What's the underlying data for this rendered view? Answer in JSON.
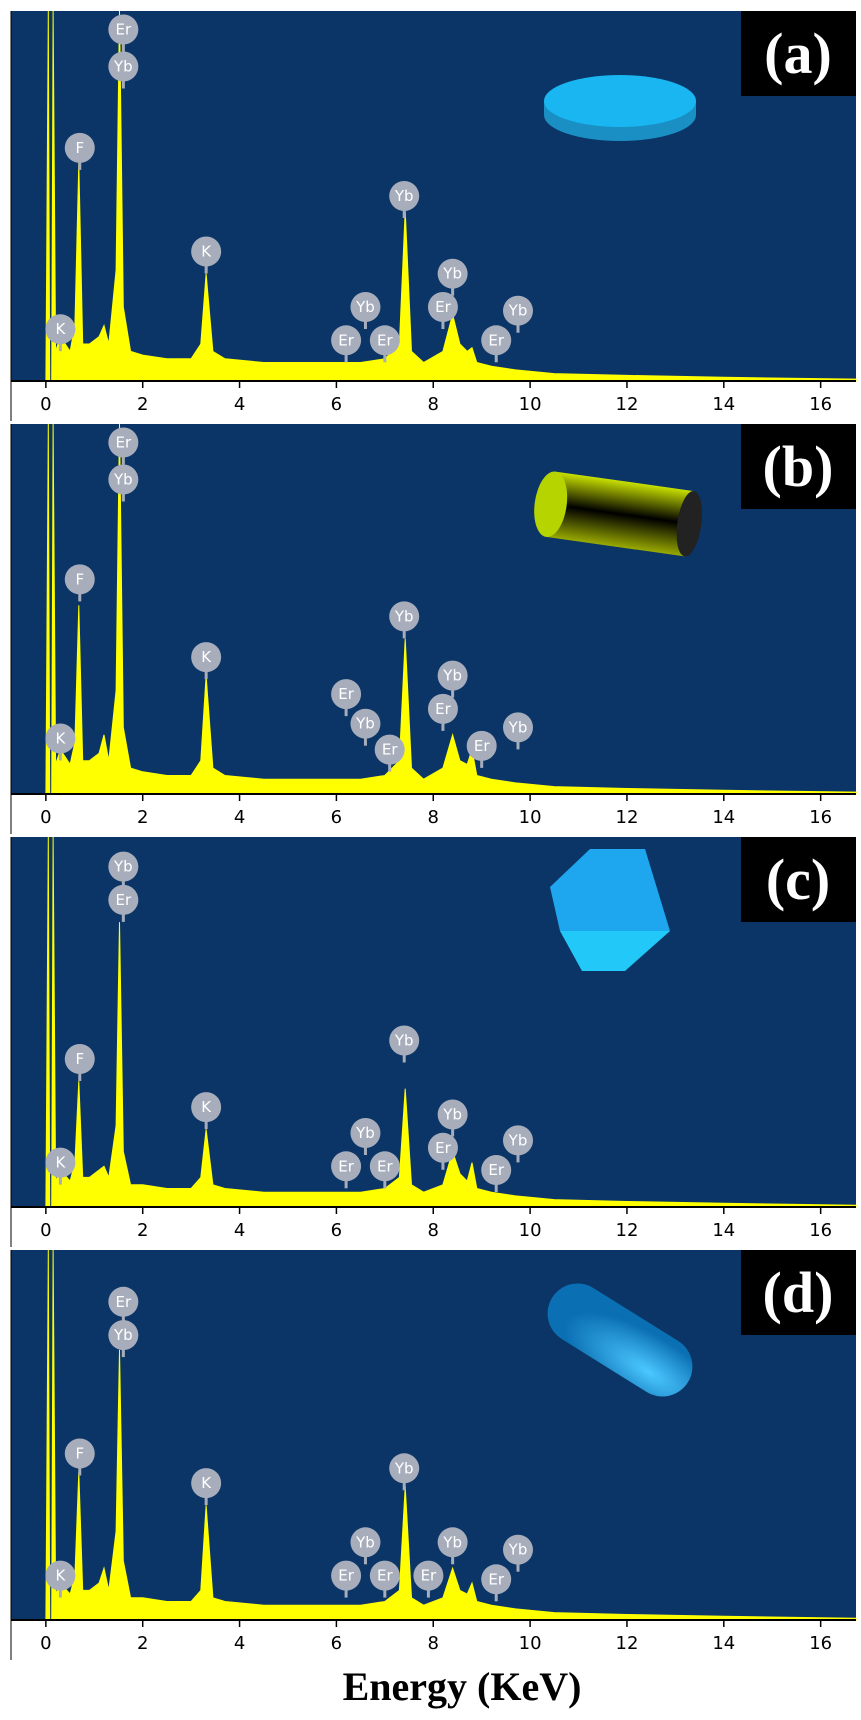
{
  "chart_data": [
    {
      "type": "area",
      "panel_label": "(a)",
      "color": "#ffff00",
      "background": "#0b3566",
      "xlim": [
        -0.72,
        16.73
      ],
      "ylim": [
        0,
        100
      ],
      "xticks": [
        0,
        2,
        4,
        6,
        8,
        10,
        12,
        14,
        16
      ],
      "x": [
        -0.72,
        0,
        0.05,
        0.08,
        0.12,
        0.15,
        0.2,
        0.3,
        0.5,
        0.6,
        0.68,
        0.76,
        0.9,
        1.1,
        1.2,
        1.3,
        1.45,
        1.52,
        1.6,
        1.75,
        2.0,
        2.5,
        3.0,
        3.2,
        3.31,
        3.45,
        3.7,
        4.5,
        5.5,
        6.5,
        7.0,
        7.3,
        7.42,
        7.55,
        7.8,
        8.2,
        8.4,
        8.55,
        8.7,
        8.8,
        8.9,
        9.2,
        9.7,
        10.5,
        12,
        14,
        16.73
      ],
      "values": [
        0,
        0,
        100,
        0,
        0,
        100,
        8,
        12,
        8,
        15,
        59,
        10,
        10,
        12,
        15,
        10,
        30,
        100,
        20,
        8,
        7,
        6,
        6,
        10,
        29,
        8,
        6,
        5,
        5,
        5,
        6,
        10,
        46,
        8,
        5,
        8,
        18,
        10,
        8,
        9,
        5,
        4,
        3,
        2,
        1.5,
        1,
        0.5
      ],
      "annotations": [
        {
          "label": "Er",
          "x": 1.6,
          "y": 95
        },
        {
          "label": "Yb",
          "x": 1.6,
          "y": 85
        },
        {
          "label": "F",
          "x": 0.7,
          "y": 63
        },
        {
          "label": "K",
          "x": 0.3,
          "y": 14
        },
        {
          "label": "K",
          "x": 3.31,
          "y": 35
        },
        {
          "label": "Yb",
          "x": 7.4,
          "y": 50
        },
        {
          "label": "Er",
          "x": 6.2,
          "y": 11
        },
        {
          "label": "Yb",
          "x": 6.6,
          "y": 20
        },
        {
          "label": "Er",
          "x": 7.0,
          "y": 11
        },
        {
          "label": "Er",
          "x": 8.2,
          "y": 20
        },
        {
          "label": "Yb",
          "x": 8.4,
          "y": 29
        },
        {
          "label": "Er",
          "x": 9.3,
          "y": 11
        },
        {
          "label": "Yb",
          "x": 9.75,
          "y": 19
        }
      ]
    },
    {
      "type": "area",
      "panel_label": "(b)",
      "color": "#ffff00",
      "background": "#0b3566",
      "xlim": [
        -0.72,
        16.73
      ],
      "ylim": [
        0,
        100
      ],
      "xticks": [
        0,
        2,
        4,
        6,
        8,
        10,
        12,
        14,
        16
      ],
      "x": [
        -0.72,
        0,
        0.05,
        0.08,
        0.12,
        0.15,
        0.2,
        0.3,
        0.5,
        0.6,
        0.68,
        0.76,
        0.9,
        1.1,
        1.2,
        1.3,
        1.45,
        1.52,
        1.6,
        1.75,
        2.0,
        2.5,
        3.0,
        3.2,
        3.31,
        3.45,
        3.7,
        4.5,
        5.5,
        6.5,
        7.0,
        7.3,
        7.42,
        7.55,
        7.8,
        8.2,
        8.4,
        8.55,
        8.7,
        8.8,
        8.9,
        9.2,
        9.7,
        10.5,
        12,
        14,
        16.73
      ],
      "values": [
        0,
        0,
        100,
        0,
        0,
        100,
        8,
        12,
        8,
        14,
        51,
        9,
        9,
        11,
        16,
        9,
        28,
        100,
        18,
        7,
        6,
        5,
        5,
        9,
        32,
        7,
        5,
        4,
        4,
        4,
        5,
        9,
        42,
        7,
        4,
        7,
        16,
        9,
        8,
        12,
        5,
        4,
        3,
        2,
        1.5,
        1,
        0.5
      ],
      "annotations": [
        {
          "label": "Er",
          "x": 1.6,
          "y": 95
        },
        {
          "label": "Yb",
          "x": 1.6,
          "y": 85
        },
        {
          "label": "F",
          "x": 0.7,
          "y": 58
        },
        {
          "label": "K",
          "x": 0.3,
          "y": 15
        },
        {
          "label": "K",
          "x": 3.31,
          "y": 37
        },
        {
          "label": "Yb",
          "x": 7.4,
          "y": 48
        },
        {
          "label": "Er",
          "x": 6.2,
          "y": 27
        },
        {
          "label": "Yb",
          "x": 6.6,
          "y": 19
        },
        {
          "label": "Er",
          "x": 7.1,
          "y": 12
        },
        {
          "label": "Yb",
          "x": 8.4,
          "y": 32
        },
        {
          "label": "Er",
          "x": 8.2,
          "y": 23
        },
        {
          "label": "Er",
          "x": 9.0,
          "y": 13
        },
        {
          "label": "Yb",
          "x": 9.75,
          "y": 18
        }
      ]
    },
    {
      "type": "area",
      "panel_label": "(c)",
      "color": "#ffff00",
      "background": "#0b3566",
      "xlim": [
        -0.72,
        16.73
      ],
      "ylim": [
        0,
        100
      ],
      "xticks": [
        0,
        2,
        4,
        6,
        8,
        10,
        12,
        14,
        16
      ],
      "x": [
        -0.72,
        0,
        0.05,
        0.08,
        0.12,
        0.15,
        0.2,
        0.3,
        0.5,
        0.6,
        0.68,
        0.76,
        0.9,
        1.1,
        1.2,
        1.3,
        1.45,
        1.52,
        1.6,
        1.75,
        2.0,
        2.5,
        3.0,
        3.2,
        3.31,
        3.45,
        3.7,
        4.5,
        5.5,
        6.5,
        7.0,
        7.3,
        7.42,
        7.55,
        7.8,
        8.2,
        8.4,
        8.55,
        8.7,
        8.8,
        8.9,
        9.2,
        9.7,
        10.5,
        12,
        14,
        16.73
      ],
      "values": [
        0,
        0,
        100,
        0,
        0,
        100,
        7,
        10,
        7,
        12,
        34,
        8,
        8,
        10,
        11,
        8,
        22,
        77,
        15,
        6,
        6,
        5,
        5,
        8,
        21,
        6,
        5,
        4,
        4,
        4,
        5,
        8,
        32,
        6,
        4,
        6,
        15,
        9,
        7,
        12,
        5,
        4,
        3,
        2,
        1.5,
        1,
        0.5
      ],
      "annotations": [
        {
          "label": "Yb",
          "x": 1.6,
          "y": 92
        },
        {
          "label": "Er",
          "x": 1.6,
          "y": 83
        },
        {
          "label": "F",
          "x": 0.7,
          "y": 40
        },
        {
          "label": "K",
          "x": 0.3,
          "y": 12
        },
        {
          "label": "K",
          "x": 3.31,
          "y": 27
        },
        {
          "label": "Yb",
          "x": 7.4,
          "y": 45
        },
        {
          "label": "Er",
          "x": 6.2,
          "y": 11
        },
        {
          "label": "Yb",
          "x": 6.6,
          "y": 20
        },
        {
          "label": "Er",
          "x": 7.0,
          "y": 11
        },
        {
          "label": "Yb",
          "x": 8.4,
          "y": 25
        },
        {
          "label": "Er",
          "x": 8.2,
          "y": 16
        },
        {
          "label": "Er",
          "x": 9.3,
          "y": 10
        },
        {
          "label": "Yb",
          "x": 9.75,
          "y": 18
        }
      ]
    },
    {
      "type": "area",
      "panel_label": "(d)",
      "color": "#ffff00",
      "background": "#0b3566",
      "xlim": [
        -0.72,
        16.73
      ],
      "ylim": [
        0,
        100
      ],
      "xticks": [
        0,
        2,
        4,
        6,
        8,
        10,
        12,
        14,
        16
      ],
      "xlabel": "Energy (KeV)",
      "x": [
        -0.72,
        0,
        0.05,
        0.08,
        0.12,
        0.15,
        0.2,
        0.3,
        0.5,
        0.6,
        0.68,
        0.76,
        0.9,
        1.1,
        1.2,
        1.3,
        1.45,
        1.52,
        1.6,
        1.75,
        2.0,
        2.5,
        3.0,
        3.2,
        3.31,
        3.45,
        3.7,
        4.5,
        5.5,
        6.5,
        7.0,
        7.3,
        7.42,
        7.55,
        7.8,
        8.2,
        8.4,
        8.55,
        8.7,
        8.8,
        8.9,
        9.2,
        9.7,
        10.5,
        12,
        14,
        16.73
      ],
      "values": [
        0,
        0,
        100,
        0,
        0,
        100,
        7,
        10,
        7,
        12,
        40,
        8,
        8,
        10,
        14,
        8,
        24,
        73,
        16,
        6,
        6,
        5,
        5,
        8,
        31,
        6,
        5,
        4,
        4,
        4,
        5,
        8,
        36,
        6,
        4,
        6,
        14,
        8,
        7,
        10,
        5,
        4,
        3,
        2,
        1.5,
        1,
        0.5
      ],
      "annotations": [
        {
          "label": "Er",
          "x": 1.6,
          "y": 86
        },
        {
          "label": "Yb",
          "x": 1.6,
          "y": 77
        },
        {
          "label": "F",
          "x": 0.7,
          "y": 45
        },
        {
          "label": "K",
          "x": 0.3,
          "y": 12
        },
        {
          "label": "K",
          "x": 3.31,
          "y": 37
        },
        {
          "label": "Yb",
          "x": 7.4,
          "y": 41
        },
        {
          "label": "Er",
          "x": 6.2,
          "y": 12
        },
        {
          "label": "Yb",
          "x": 6.6,
          "y": 21
        },
        {
          "label": "Er",
          "x": 7.0,
          "y": 12
        },
        {
          "label": "Er",
          "x": 7.9,
          "y": 12
        },
        {
          "label": "Yb",
          "x": 8.4,
          "y": 21
        },
        {
          "label": "Er",
          "x": 9.3,
          "y": 11
        },
        {
          "label": "Yb",
          "x": 9.75,
          "y": 19
        }
      ]
    }
  ]
}
